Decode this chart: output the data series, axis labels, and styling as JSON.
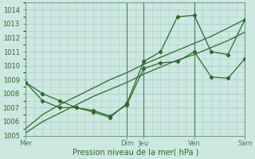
{
  "xlabel": "Pression niveau de la mer( hPa )",
  "background_color": "#cce8e0",
  "grid_color": "#aacccc",
  "line_color": "#2d6a2d",
  "ylim": [
    1005,
    1014.5
  ],
  "xlim": [
    0,
    6.5
  ],
  "yticks": [
    1005,
    1006,
    1007,
    1008,
    1009,
    1010,
    1011,
    1012,
    1013,
    1014
  ],
  "day_positions": [
    0.0,
    3.0,
    3.5,
    5.0,
    6.5
  ],
  "day_labels": [
    "Mer",
    "Dim",
    "Jeu",
    "Ven",
    "Sam"
  ],
  "series1_x": [
    0.0,
    0.5,
    1.0,
    1.5,
    2.0,
    2.5,
    3.0,
    3.5,
    4.0,
    4.5,
    5.0,
    5.5,
    6.0,
    6.5
  ],
  "series1_y": [
    1005.2,
    1006.0,
    1006.6,
    1007.2,
    1007.8,
    1008.3,
    1008.8,
    1009.4,
    1009.9,
    1010.4,
    1010.8,
    1011.3,
    1011.8,
    1012.4
  ],
  "series2_x": [
    0.0,
    0.5,
    1.0,
    1.5,
    2.0,
    2.5,
    3.0,
    3.5,
    4.0,
    4.5,
    5.0,
    5.5,
    6.0,
    6.5
  ],
  "series2_y": [
    1005.5,
    1006.5,
    1007.2,
    1007.8,
    1008.4,
    1009.0,
    1009.5,
    1010.1,
    1010.6,
    1011.1,
    1011.6,
    1012.1,
    1012.7,
    1013.3
  ],
  "series3_x": [
    0.0,
    0.5,
    1.0,
    1.5,
    2.0,
    2.5,
    3.0,
    3.5,
    4.0,
    4.5,
    5.0,
    5.5,
    6.0,
    6.5
  ],
  "series3_y": [
    1008.8,
    1008.0,
    1007.5,
    1007.0,
    1006.8,
    1006.4,
    1007.2,
    1009.8,
    1010.2,
    1010.3,
    1011.0,
    1009.2,
    1009.1,
    1010.5
  ],
  "series4_x": [
    0.0,
    0.5,
    1.0,
    1.5,
    2.0,
    2.5,
    3.0,
    3.5,
    4.0,
    4.5,
    5.0,
    5.5,
    6.0,
    6.5
  ],
  "series4_y": [
    1008.8,
    1007.5,
    1007.0,
    1007.0,
    1006.7,
    1006.3,
    1007.3,
    1010.3,
    1011.0,
    1013.5,
    1013.6,
    1011.0,
    1010.8,
    1013.3
  ]
}
